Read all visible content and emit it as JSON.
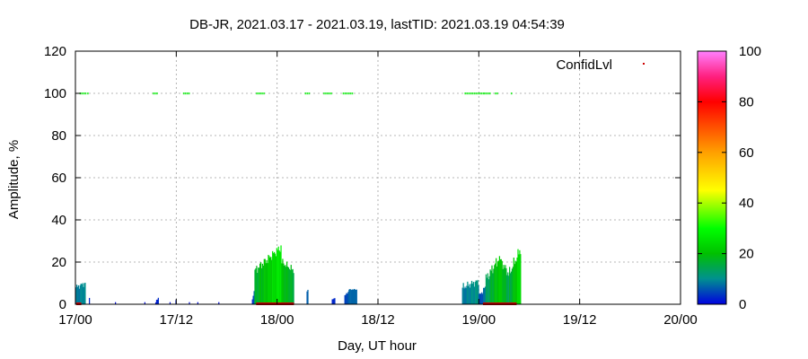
{
  "chart_data": {
    "type": "bar",
    "title": "DB-JR, 2021.03.17 - 2021.03.19, lastTID: 2021.03.19 04:54:39",
    "xlabel": "Day, UT hour",
    "ylabel": "Amplitude, %",
    "xlim": [
      0,
      72
    ],
    "ylim": [
      0,
      120
    ],
    "x_ticks": [
      {
        "value": 0,
        "label": "17/00"
      },
      {
        "value": 12,
        "label": "17/12"
      },
      {
        "value": 24,
        "label": "18/00"
      },
      {
        "value": 36,
        "label": "18/12"
      },
      {
        "value": 48,
        "label": "19/00"
      },
      {
        "value": 60,
        "label": "19/12"
      },
      {
        "value": 72,
        "label": "20/00"
      }
    ],
    "y_ticks": [
      0,
      20,
      40,
      60,
      80,
      100,
      120
    ],
    "grid": true,
    "legend": {
      "label": "ConfidLvl",
      "position": "top-right",
      "marker_color": "#cc0000"
    },
    "colorbar": {
      "range": [
        0,
        100
      ],
      "ticks": [
        0,
        20,
        40,
        60,
        80,
        100
      ],
      "stops": [
        {
          "v": 0,
          "color": "#0000e0"
        },
        {
          "v": 10,
          "color": "#009090"
        },
        {
          "v": 20,
          "color": "#00c000"
        },
        {
          "v": 30,
          "color": "#00ff00"
        },
        {
          "v": 45,
          "color": "#ffff00"
        },
        {
          "v": 60,
          "color": "#ffa000"
        },
        {
          "v": 80,
          "color": "#ff0000"
        },
        {
          "v": 90,
          "color": "#ff2080"
        },
        {
          "v": 100,
          "color": "#ff80ff"
        }
      ]
    },
    "amplitude_segments": [
      {
        "x0": 0.0,
        "x1": 1.2,
        "v0": 8,
        "v1": 10,
        "jitter": 1.5
      },
      {
        "x0": 1.6,
        "x1": 1.7,
        "v0": 3,
        "v1": 3,
        "jitter": 0
      },
      {
        "x0": 4.7,
        "x1": 4.8,
        "v0": 1,
        "v1": 1,
        "jitter": 0
      },
      {
        "x0": 8.2,
        "x1": 8.3,
        "v0": 1,
        "v1": 1,
        "jitter": 0
      },
      {
        "x0": 9.5,
        "x1": 9.9,
        "v0": 1,
        "v1": 3,
        "jitter": 0.5
      },
      {
        "x0": 11.2,
        "x1": 11.3,
        "v0": 1,
        "v1": 1,
        "jitter": 0
      },
      {
        "x0": 11.9,
        "x1": 12.0,
        "v0": 2,
        "v1": 2,
        "jitter": 0
      },
      {
        "x0": 13.5,
        "x1": 13.6,
        "v0": 1,
        "v1": 1,
        "jitter": 0
      },
      {
        "x0": 14.5,
        "x1": 14.6,
        "v0": 1,
        "v1": 1,
        "jitter": 0
      },
      {
        "x0": 17.0,
        "x1": 17.1,
        "v0": 1,
        "v1": 1,
        "jitter": 0
      },
      {
        "x0": 21.0,
        "x1": 21.3,
        "v0": 2,
        "v1": 6,
        "jitter": 0.5
      },
      {
        "x0": 21.3,
        "x1": 24.5,
        "v0": 16,
        "v1": 27,
        "jitter": 2.5
      },
      {
        "x0": 24.5,
        "x1": 26.0,
        "v0": 20,
        "v1": 16,
        "jitter": 2.0
      },
      {
        "x0": 27.5,
        "x1": 27.7,
        "v0": 6,
        "v1": 6,
        "jitter": 1.0
      },
      {
        "x0": 30.5,
        "x1": 30.9,
        "v0": 2,
        "v1": 3,
        "jitter": 0.5
      },
      {
        "x0": 32.0,
        "x1": 32.5,
        "v0": 4,
        "v1": 6,
        "jitter": 0.5
      },
      {
        "x0": 32.5,
        "x1": 33.5,
        "v0": 7,
        "v1": 7,
        "jitter": 0.3
      },
      {
        "x0": 46.0,
        "x1": 48.0,
        "v0": 8,
        "v1": 11,
        "jitter": 2.0
      },
      {
        "x0": 48.0,
        "x1": 48.8,
        "v0": 4,
        "v1": 8,
        "jitter": 1.5
      },
      {
        "x0": 48.8,
        "x1": 50.5,
        "v0": 12,
        "v1": 22,
        "jitter": 3.0
      },
      {
        "x0": 50.5,
        "x1": 51.5,
        "v0": 21,
        "v1": 15,
        "jitter": 2.5
      },
      {
        "x0": 51.5,
        "x1": 53.0,
        "v0": 14,
        "v1": 26,
        "jitter": 3.0
      }
    ],
    "confidence_points": [
      {
        "x0": 0.5,
        "x1": 1.2,
        "v": 100
      },
      {
        "x0": 1.4,
        "x1": 1.5,
        "v": 100
      },
      {
        "x0": 9.2,
        "x1": 9.8,
        "v": 100
      },
      {
        "x0": 12.8,
        "x1": 13.5,
        "v": 100
      },
      {
        "x0": 21.5,
        "x1": 22.5,
        "v": 100
      },
      {
        "x0": 27.3,
        "x1": 27.8,
        "v": 100
      },
      {
        "x0": 29.5,
        "x1": 30.4,
        "v": 100
      },
      {
        "x0": 31.8,
        "x1": 33.0,
        "v": 100
      },
      {
        "x0": 46.3,
        "x1": 48.5,
        "v": 100
      },
      {
        "x0": 48.6,
        "x1": 49.4,
        "v": 100
      },
      {
        "x0": 49.9,
        "x1": 50.3,
        "v": 100
      },
      {
        "x0": 51.8,
        "x1": 51.9,
        "v": 100
      }
    ],
    "zero_markers": [
      {
        "x0": 0.1,
        "x1": 0.7
      },
      {
        "x0": 21.5,
        "x1": 26.0
      },
      {
        "x0": 48.5,
        "x1": 52.5
      }
    ]
  }
}
